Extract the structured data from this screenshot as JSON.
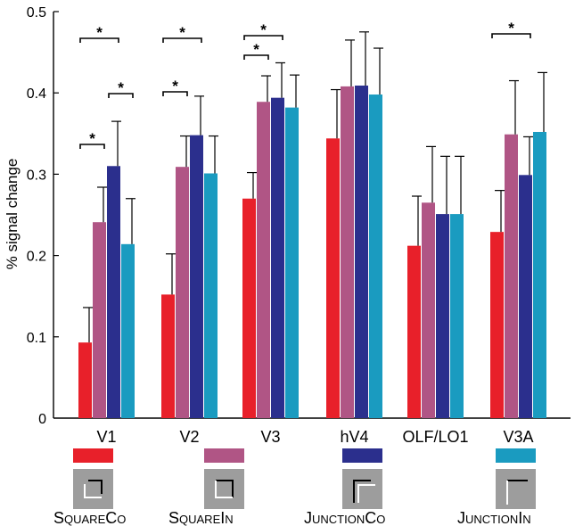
{
  "chart_data": {
    "type": "bar",
    "ylabel": "% signal change",
    "xlabel": "",
    "ylim": [
      0,
      0.5
    ],
    "yticks": [
      "0",
      "0.1",
      "0.2",
      "0.3",
      "0.4",
      "0.5"
    ],
    "categories": [
      "V1",
      "V2",
      "V3",
      "hV4",
      "OLF/LO1",
      "V3A"
    ],
    "series": [
      {
        "name": "SQUARECO",
        "color": "#e8202a",
        "values": [
          0.093,
          0.152,
          0.27,
          0.344,
          0.212,
          0.229
        ],
        "errors": [
          0.043,
          0.05,
          0.032,
          0.06,
          0.061,
          0.051
        ]
      },
      {
        "name": "SQUAREIN",
        "color": "#b05585",
        "values": [
          0.241,
          0.309,
          0.389,
          0.408,
          0.265,
          0.349
        ],
        "errors": [
          0.043,
          0.038,
          0.032,
          0.057,
          0.069,
          0.066
        ]
      },
      {
        "name": "JUNCTIONCO",
        "color": "#2b2f8d",
        "values": [
          0.31,
          0.348,
          0.394,
          0.409,
          0.251,
          0.299
        ],
        "errors": [
          0.055,
          0.048,
          0.043,
          0.066,
          0.071,
          0.047
        ]
      },
      {
        "name": "JUNCTIONIN",
        "color": "#1a9bc0",
        "values": [
          0.214,
          0.301,
          0.382,
          0.398,
          0.251,
          0.352
        ],
        "errors": [
          0.056,
          0.046,
          0.04,
          0.057,
          0.071,
          0.073
        ]
      }
    ],
    "significance": [
      {
        "category": 0,
        "from": 0,
        "to": 2,
        "label": "*"
      },
      {
        "category": 0,
        "from": 0,
        "to": 1,
        "label": "*"
      },
      {
        "category": 0,
        "from": 2,
        "to": 3,
        "label": "*"
      },
      {
        "category": 1,
        "from": 0,
        "to": 2,
        "label": "*"
      },
      {
        "category": 1,
        "from": 0,
        "to": 1,
        "label": "*"
      },
      {
        "category": 2,
        "from": 0,
        "to": 2,
        "label": "*"
      },
      {
        "category": 2,
        "from": 0,
        "to": 1,
        "label": "*"
      },
      {
        "category": 5,
        "from": 0,
        "to": 2,
        "label": "*"
      }
    ],
    "legend": [
      {
        "first": "S",
        "rest": "QUARE",
        "first2": "C",
        "rest2": "O",
        "icon": "square-co"
      },
      {
        "first": "S",
        "rest": "QUARE",
        "first2": "I",
        "rest2": "N",
        "icon": "square-in"
      },
      {
        "first": "J",
        "rest": "UNCTION",
        "first2": "C",
        "rest2": "O",
        "icon": "junction-co"
      },
      {
        "first": "J",
        "rest": "UNCTION",
        "first2": "I",
        "rest2": "N",
        "icon": "junction-in"
      }
    ]
  }
}
